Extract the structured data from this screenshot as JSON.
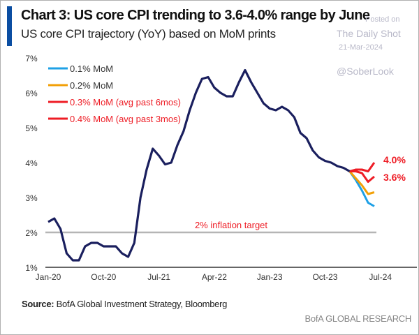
{
  "header": {
    "title": "Chart 3: US core CPI trending to 3.6-4.0% range by June",
    "subtitle": "US core CPI trajectory (YoY) based on MoM prints"
  },
  "watermark": {
    "posted": "Posted on",
    "site": "The Daily Shot",
    "date": "21-Mar-2024",
    "handle": "@SoberLook"
  },
  "footer": {
    "source_label": "Source:",
    "source_text": " BofA Global Investment Strategy, Bloomberg",
    "brand": "BofA GLOBAL RESEARCH"
  },
  "colors": {
    "actual": "#1a1f5e",
    "mom01": "#1ea0e6",
    "mom02": "#f2a007",
    "mom03": "#ee1c25",
    "mom04": "#ee1c25",
    "target": "#b5b5b5",
    "label_red": "#ee1c25"
  },
  "chart_data": {
    "type": "line",
    "title": "Chart 3: US core CPI trending to 3.6-4.0% range by June",
    "subtitle": "US core CPI trajectory (YoY) based on MoM prints",
    "ylim": [
      1,
      7
    ],
    "yticks": [
      "1%",
      "2%",
      "3%",
      "4%",
      "5%",
      "6%",
      "7%"
    ],
    "xticks": [
      {
        "label": "Jan-20",
        "month": 0
      },
      {
        "label": "Oct-20",
        "month": 9
      },
      {
        "label": "Jul-21",
        "month": 18
      },
      {
        "label": "Apr-22",
        "month": 27
      },
      {
        "label": "Jan-23",
        "month": 36
      },
      {
        "label": "Oct-23",
        "month": 45
      },
      {
        "label": "Jul-24",
        "month": 54
      }
    ],
    "actual": {
      "start": "Jan-20",
      "values": [
        2.3,
        2.4,
        2.1,
        1.4,
        1.2,
        1.2,
        1.6,
        1.7,
        1.7,
        1.6,
        1.6,
        1.6,
        1.4,
        1.3,
        1.7,
        3.0,
        3.8,
        4.4,
        4.2,
        3.95,
        4.0,
        4.5,
        4.9,
        5.5,
        6.0,
        6.4,
        6.45,
        6.15,
        6.0,
        5.9,
        5.9,
        6.3,
        6.65,
        6.3,
        6.0,
        5.7,
        5.55,
        5.5,
        5.6,
        5.5,
        5.3,
        4.85,
        4.7,
        4.35,
        4.15,
        4.05,
        4.0,
        3.9,
        3.85,
        3.75
      ]
    },
    "series": [
      {
        "name": "0.1% MoM",
        "color": "#1ea0e6",
        "values": [
          3.75,
          3.5,
          3.2,
          2.85,
          2.75
        ]
      },
      {
        "name": "0.2% MoM",
        "color": "#f2a007",
        "values": [
          3.75,
          3.55,
          3.35,
          3.1,
          3.15
        ]
      },
      {
        "name": "0.3% MoM (avg past 6mos)",
        "color": "#ee1c25",
        "values": [
          3.75,
          3.75,
          3.7,
          3.45,
          3.6
        ]
      },
      {
        "name": "0.4% MoM (avg past 3mos)",
        "color": "#ee1c25",
        "values": [
          3.75,
          3.8,
          3.8,
          3.75,
          4.0
        ]
      }
    ],
    "projection_start_month": 49,
    "end_labels": [
      "4.0%",
      "3.6%"
    ],
    "target": {
      "value": 2,
      "label": "2% inflation target"
    }
  }
}
